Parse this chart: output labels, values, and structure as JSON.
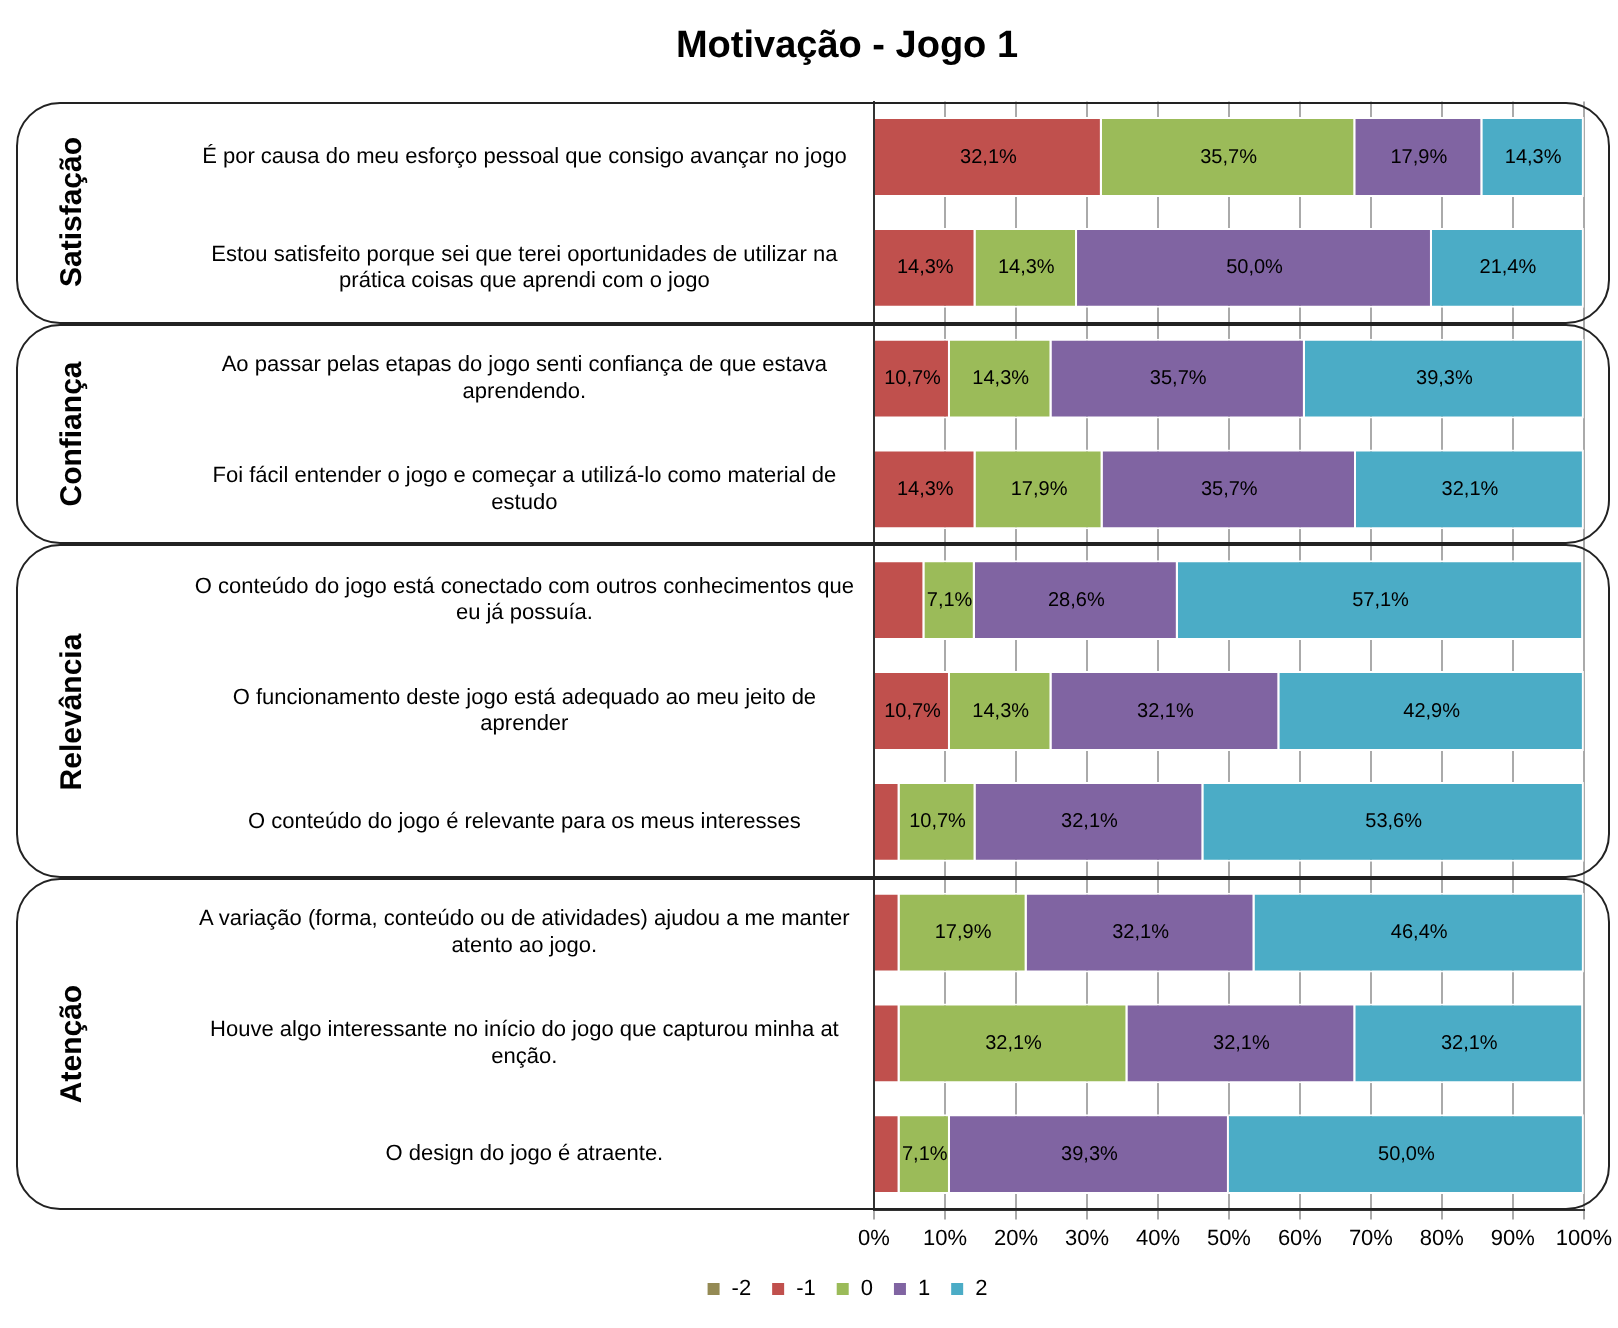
{
  "chart_data": {
    "type": "bar",
    "orientation": "horizontal",
    "stacked": true,
    "title": "Motivação - Jogo 1",
    "categories": [
      "É por causa do meu esforço pessoal que consigo avançar no jogo",
      "Estou satisfeito porque sei que terei oportunidades de utilizar na prática coisas que aprendi com o jogo",
      "Ao passar pelas etapas do jogo senti confiança de que estava aprendendo.",
      "Foi fácil entender o jogo e começar a utilizá-lo como material de estudo",
      "O conteúdo do jogo está conectado com outros conhecimentos que eu já possuía.",
      "O funcionamento deste jogo está adequado ao meu jeito de aprender",
      "O conteúdo do jogo é relevante para os meus interesses",
      "A variação (forma, conteúdo ou de atividades) ajudou a me manter atento ao jogo.",
      "Houve algo interessante no início do jogo que capturou minha at enção.",
      "O design do jogo é atraente."
    ],
    "series": [
      {
        "name": "-2",
        "color": "#948a54",
        "values": [
          0,
          0,
          0,
          0,
          0,
          0,
          0,
          0,
          0,
          0
        ],
        "value_labels": [
          null,
          null,
          null,
          null,
          null,
          null,
          null,
          null,
          null,
          null
        ]
      },
      {
        "name": "-1",
        "color": "#c0504d",
        "values": [
          32.1,
          14.3,
          10.7,
          14.3,
          7.1,
          10.7,
          3.6,
          3.6,
          3.6,
          3.6
        ],
        "value_labels": [
          "32,1%",
          "14,3%",
          "10,7%",
          "14,3%",
          null,
          "10,7%",
          null,
          null,
          null,
          null
        ]
      },
      {
        "name": "0",
        "color": "#9bbb59",
        "values": [
          35.7,
          14.3,
          14.3,
          17.9,
          7.1,
          14.3,
          10.7,
          17.9,
          32.1,
          7.1
        ],
        "value_labels": [
          "35,7%",
          "14,3%",
          "14,3%",
          "17,9%",
          "7,1%",
          "14,3%",
          "10,7%",
          "17,9%",
          "32,1%",
          "7,1%"
        ]
      },
      {
        "name": "1",
        "color": "#8064a2",
        "values": [
          17.9,
          50.0,
          35.7,
          35.7,
          28.6,
          32.1,
          32.1,
          32.1,
          32.1,
          39.3
        ],
        "value_labels": [
          "17,9%",
          "50,0%",
          "35,7%",
          "35,7%",
          "28,6%",
          "32,1%",
          "32,1%",
          "32,1%",
          "32,1%",
          "39,3%"
        ]
      },
      {
        "name": "2",
        "color": "#4bacc6",
        "values": [
          14.3,
          21.4,
          39.3,
          32.1,
          57.1,
          42.9,
          53.6,
          46.4,
          32.1,
          50.0
        ],
        "value_labels": [
          "14,3%",
          "21,4%",
          "39,3%",
          "32,1%",
          "57,1%",
          "42,9%",
          "53,6%",
          "46,4%",
          "32,1%",
          "50,0%"
        ]
      }
    ],
    "xlim": [
      0,
      100
    ],
    "xticks": [
      {
        "value": 0,
        "label": "0%"
      },
      {
        "value": 10,
        "label": "10%"
      },
      {
        "value": 20,
        "label": "20%"
      },
      {
        "value": 30,
        "label": "30%"
      },
      {
        "value": 40,
        "label": "40%"
      },
      {
        "value": 50,
        "label": "50%"
      },
      {
        "value": 60,
        "label": "60%"
      },
      {
        "value": 70,
        "label": "70%"
      },
      {
        "value": 80,
        "label": "80%"
      },
      {
        "value": 90,
        "label": "90%"
      },
      {
        "value": 100,
        "label": "100%"
      }
    ],
    "grid": "x",
    "legend": "bottom",
    "annotations": [
      "Satisfação",
      "Confiança",
      "Relevância",
      "Atenção"
    ]
  }
}
